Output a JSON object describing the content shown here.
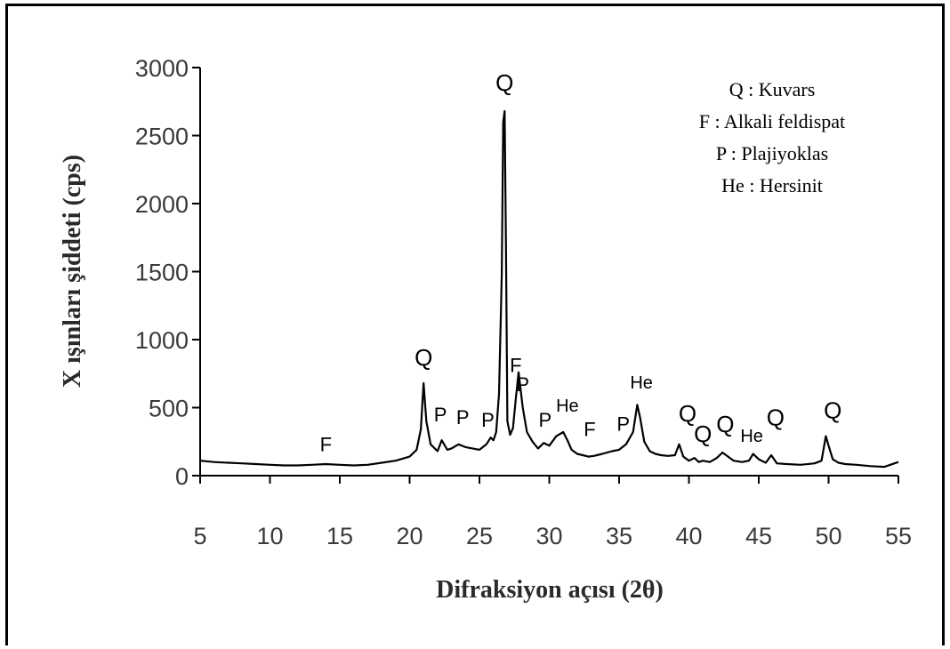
{
  "chart_data": {
    "type": "line",
    "title": "",
    "xlabel": "Difraksiyon açısı (2θ)",
    "ylabel": "X ışınları şiddeti (cps)",
    "xlim": [
      5,
      55
    ],
    "ylim": [
      0,
      3000
    ],
    "xticks": [
      "5",
      "10",
      "15",
      "20",
      "25",
      "30",
      "35",
      "40",
      "45",
      "50",
      "55"
    ],
    "yticks": [
      "0",
      "500",
      "1000",
      "1500",
      "2000",
      "2500",
      "3000"
    ],
    "grid": false,
    "legend_position": "top-right",
    "legend": [
      "Q : Kuvars",
      "F : Alkali feldispat",
      "P : Plajiyoklas",
      "He : Hersinit"
    ],
    "series": [
      {
        "x": [
          5,
          6,
          7,
          8,
          9,
          10,
          11,
          12,
          13,
          14,
          15,
          16,
          17,
          18,
          19,
          19.5,
          20,
          20.5,
          20.8,
          21,
          21.2,
          21.5,
          22,
          22.3,
          22.7,
          23,
          23.5,
          24,
          24.5,
          25,
          25.5,
          25.8,
          26,
          26.2,
          26.4,
          26.6,
          26.7,
          26.8,
          26.9,
          27,
          27.2,
          27.4,
          27.6,
          27.8,
          28.1,
          28.4,
          28.8,
          29.2,
          29.6,
          30,
          30.5,
          31,
          31.3,
          31.6,
          32,
          32.4,
          32.8,
          33.2,
          33.8,
          34.5,
          35,
          35.5,
          36,
          36.3,
          36.5,
          36.8,
          37.2,
          37.6,
          38,
          38.5,
          39,
          39.3,
          39.6,
          40,
          40.4,
          40.7,
          41,
          41.5,
          42,
          42.4,
          42.8,
          43.2,
          43.8,
          44.3,
          44.6,
          45,
          45.5,
          45.9,
          46.3,
          47,
          48,
          49,
          49.5,
          49.8,
          50,
          50.3,
          50.7,
          51.2,
          52,
          53,
          54,
          55
        ],
        "y": [
          110,
          100,
          95,
          90,
          85,
          80,
          75,
          75,
          80,
          85,
          80,
          75,
          80,
          95,
          110,
          125,
          140,
          190,
          340,
          680,
          400,
          230,
          180,
          260,
          190,
          200,
          230,
          210,
          200,
          190,
          230,
          280,
          260,
          320,
          600,
          1480,
          2600,
          2680,
          1700,
          400,
          300,
          350,
          560,
          760,
          500,
          320,
          250,
          200,
          240,
          220,
          290,
          320,
          260,
          190,
          160,
          150,
          140,
          145,
          160,
          180,
          190,
          230,
          320,
          520,
          430,
          250,
          180,
          160,
          150,
          145,
          150,
          230,
          140,
          110,
          130,
          100,
          110,
          100,
          130,
          170,
          140,
          110,
          100,
          110,
          160,
          120,
          95,
          150,
          90,
          85,
          80,
          90,
          110,
          290,
          220,
          120,
          95,
          85,
          80,
          70,
          65,
          100
        ]
      }
    ],
    "peak_labels": [
      {
        "text": "F",
        "x": 14,
        "y": 180
      },
      {
        "text": "Q",
        "x": 21,
        "y": 810
      },
      {
        "text": "P",
        "x": 22.2,
        "y": 400
      },
      {
        "text": "P",
        "x": 23.8,
        "y": 380
      },
      {
        "text": "P",
        "x": 25.6,
        "y": 360
      },
      {
        "text": "Q",
        "x": 26.8,
        "y": 2830
      },
      {
        "text": "F",
        "x": 27.6,
        "y": 760
      },
      {
        "text": "P",
        "x": 28.1,
        "y": 620
      },
      {
        "text": "P",
        "x": 29.7,
        "y": 360
      },
      {
        "text": "He",
        "x": 31.3,
        "y": 470
      },
      {
        "text": "F",
        "x": 32.9,
        "y": 290
      },
      {
        "text": "P",
        "x": 35.3,
        "y": 330
      },
      {
        "text": "He",
        "x": 36.6,
        "y": 640
      },
      {
        "text": "Q",
        "x": 39.9,
        "y": 400
      },
      {
        "text": "Q",
        "x": 41,
        "y": 250
      },
      {
        "text": "Q",
        "x": 42.6,
        "y": 320
      },
      {
        "text": "He",
        "x": 44.5,
        "y": 250
      },
      {
        "text": "Q",
        "x": 46.2,
        "y": 370
      },
      {
        "text": "Q",
        "x": 50.3,
        "y": 420
      }
    ]
  }
}
